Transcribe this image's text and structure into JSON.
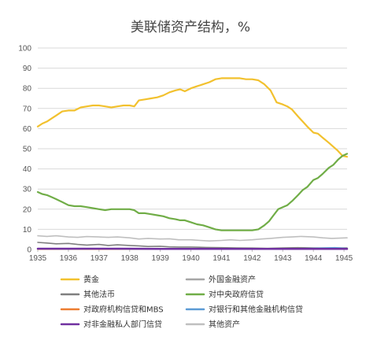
{
  "chart_data": {
    "type": "line",
    "title": "美联储资产结构，%",
    "ylim": [
      0,
      100
    ],
    "yticks": [
      0,
      10,
      20,
      30,
      40,
      50,
      60,
      70,
      80,
      90,
      100
    ],
    "xlim": [
      1935,
      1945.1
    ],
    "xticks": [
      1935,
      1936,
      1937,
      1938,
      1939,
      1940,
      1941,
      1942,
      1943,
      1944,
      1945
    ],
    "grid": true,
    "legend_position": "bottom",
    "series": [
      {
        "name": "黄金",
        "color": "#F2C12E",
        "points": [
          [
            1935.0,
            61
          ],
          [
            1935.15,
            62.5
          ],
          [
            1935.3,
            63.5
          ],
          [
            1935.45,
            65
          ],
          [
            1935.6,
            66.5
          ],
          [
            1935.8,
            68.5
          ],
          [
            1936.0,
            69
          ],
          [
            1936.2,
            69
          ],
          [
            1936.4,
            70.5
          ],
          [
            1936.6,
            71
          ],
          [
            1936.8,
            71.5
          ],
          [
            1937.0,
            71.5
          ],
          [
            1937.2,
            71
          ],
          [
            1937.4,
            70.5
          ],
          [
            1937.6,
            71
          ],
          [
            1937.8,
            71.5
          ],
          [
            1938.0,
            71.5
          ],
          [
            1938.15,
            71
          ],
          [
            1938.3,
            74
          ],
          [
            1938.5,
            74.5
          ],
          [
            1938.7,
            75
          ],
          [
            1938.9,
            75.5
          ],
          [
            1939.1,
            76.5
          ],
          [
            1939.3,
            78
          ],
          [
            1939.5,
            79
          ],
          [
            1939.65,
            79.5
          ],
          [
            1939.8,
            78.5
          ],
          [
            1940.0,
            80
          ],
          [
            1940.2,
            81
          ],
          [
            1940.4,
            82
          ],
          [
            1940.6,
            83
          ],
          [
            1940.8,
            84.5
          ],
          [
            1941.0,
            85
          ],
          [
            1941.2,
            85
          ],
          [
            1941.4,
            85
          ],
          [
            1941.6,
            85
          ],
          [
            1941.8,
            84.5
          ],
          [
            1942.0,
            84.5
          ],
          [
            1942.2,
            84
          ],
          [
            1942.4,
            82
          ],
          [
            1942.6,
            79
          ],
          [
            1942.7,
            76
          ],
          [
            1942.8,
            73
          ],
          [
            1943.0,
            72
          ],
          [
            1943.15,
            71
          ],
          [
            1943.3,
            69.5
          ],
          [
            1943.5,
            66
          ],
          [
            1943.65,
            63.5
          ],
          [
            1943.8,
            61
          ],
          [
            1944.0,
            58
          ],
          [
            1944.15,
            57.5
          ],
          [
            1944.3,
            55.5
          ],
          [
            1944.5,
            53
          ],
          [
            1944.65,
            51
          ],
          [
            1944.8,
            49
          ],
          [
            1944.95,
            46.5
          ],
          [
            1945.1,
            46
          ]
        ]
      },
      {
        "name": "外国金融资产",
        "color": "#A6A6A6",
        "points": [
          [
            1935.0,
            0.2
          ],
          [
            1936.0,
            0.2
          ],
          [
            1937.0,
            0.2
          ],
          [
            1938.0,
            0.3
          ],
          [
            1939.0,
            0.3
          ],
          [
            1940.0,
            0.3
          ],
          [
            1941.0,
            0.3
          ],
          [
            1942.0,
            0.3
          ],
          [
            1943.0,
            0.3
          ],
          [
            1944.0,
            0.3
          ],
          [
            1945.1,
            0.3
          ]
        ]
      },
      {
        "name": "其他法币",
        "color": "#7F7F7F",
        "points": [
          [
            1935.0,
            3.5
          ],
          [
            1935.3,
            3.2
          ],
          [
            1935.6,
            2.8
          ],
          [
            1936.0,
            3
          ],
          [
            1936.3,
            2.5
          ],
          [
            1936.6,
            2.2
          ],
          [
            1937.0,
            2.5
          ],
          [
            1937.3,
            2
          ],
          [
            1937.6,
            2.3
          ],
          [
            1938.0,
            2
          ],
          [
            1938.3,
            1.8
          ],
          [
            1938.6,
            1.5
          ],
          [
            1939.0,
            1.6
          ],
          [
            1939.3,
            1.3
          ],
          [
            1939.6,
            1.2
          ],
          [
            1940.0,
            1.2
          ],
          [
            1940.5,
            1
          ],
          [
            1941.0,
            0.9
          ],
          [
            1941.5,
            0.8
          ],
          [
            1942.0,
            0.7
          ],
          [
            1942.5,
            0.6
          ],
          [
            1943.0,
            0.8
          ],
          [
            1943.5,
            0.9
          ],
          [
            1944.0,
            0.8
          ],
          [
            1944.5,
            0.8
          ],
          [
            1945.1,
            0.8
          ]
        ]
      },
      {
        "name": "对中央政府信贷",
        "color": "#70AD47",
        "points": [
          [
            1935.0,
            28.5
          ],
          [
            1935.15,
            27.5
          ],
          [
            1935.3,
            27
          ],
          [
            1935.45,
            26
          ],
          [
            1935.6,
            25
          ],
          [
            1935.8,
            23.5
          ],
          [
            1936.0,
            22
          ],
          [
            1936.2,
            21.5
          ],
          [
            1936.4,
            21.5
          ],
          [
            1936.6,
            21
          ],
          [
            1936.8,
            20.5
          ],
          [
            1937.0,
            20
          ],
          [
            1937.2,
            19.5
          ],
          [
            1937.4,
            20
          ],
          [
            1937.6,
            20
          ],
          [
            1937.8,
            20
          ],
          [
            1938.0,
            20
          ],
          [
            1938.15,
            19.5
          ],
          [
            1938.3,
            18
          ],
          [
            1938.5,
            18
          ],
          [
            1938.7,
            17.5
          ],
          [
            1938.9,
            17
          ],
          [
            1939.1,
            16.5
          ],
          [
            1939.3,
            15.5
          ],
          [
            1939.5,
            15
          ],
          [
            1939.65,
            14.5
          ],
          [
            1939.8,
            14.5
          ],
          [
            1940.0,
            13.5
          ],
          [
            1940.2,
            12.5
          ],
          [
            1940.4,
            12
          ],
          [
            1940.6,
            11
          ],
          [
            1940.8,
            10
          ],
          [
            1941.0,
            9.5
          ],
          [
            1941.2,
            9.5
          ],
          [
            1941.4,
            9.5
          ],
          [
            1941.6,
            9.5
          ],
          [
            1941.8,
            9.5
          ],
          [
            1942.0,
            9.5
          ],
          [
            1942.2,
            10
          ],
          [
            1942.4,
            12
          ],
          [
            1942.55,
            14
          ],
          [
            1942.7,
            17
          ],
          [
            1942.85,
            20
          ],
          [
            1943.0,
            21
          ],
          [
            1943.15,
            22
          ],
          [
            1943.3,
            24
          ],
          [
            1943.5,
            27
          ],
          [
            1943.65,
            29.5
          ],
          [
            1943.8,
            31
          ],
          [
            1944.0,
            34.5
          ],
          [
            1944.15,
            35.5
          ],
          [
            1944.3,
            37.5
          ],
          [
            1944.5,
            40.5
          ],
          [
            1944.65,
            42
          ],
          [
            1944.8,
            44.5
          ],
          [
            1944.95,
            46.5
          ],
          [
            1945.1,
            47.5
          ]
        ]
      },
      {
        "name": "对政府机构信贷和MBS",
        "color": "#ED7D31",
        "points": [
          [
            1935.0,
            0.1
          ],
          [
            1937.0,
            0.1
          ],
          [
            1939.0,
            0.1
          ],
          [
            1941.0,
            0.1
          ],
          [
            1943.0,
            0.1
          ],
          [
            1945.1,
            0.1
          ]
        ]
      },
      {
        "name": "对银行和其他金融机构信贷",
        "color": "#5B9BD5",
        "points": [
          [
            1935.0,
            0.3
          ],
          [
            1936.0,
            0.2
          ],
          [
            1937.0,
            0.3
          ],
          [
            1938.0,
            0.2
          ],
          [
            1939.0,
            0.2
          ],
          [
            1940.0,
            0.2
          ],
          [
            1941.0,
            0.2
          ],
          [
            1942.0,
            0.2
          ],
          [
            1943.0,
            0.3
          ],
          [
            1944.0,
            0.6
          ],
          [
            1944.7,
            0.9
          ],
          [
            1945.1,
            0.5
          ]
        ]
      },
      {
        "name": "其他资产",
        "color": "#BFBFBF",
        "points": [
          [
            1935.0,
            6.8
          ],
          [
            1935.3,
            6.5
          ],
          [
            1935.6,
            6.8
          ],
          [
            1936.0,
            6.2
          ],
          [
            1936.3,
            6
          ],
          [
            1936.6,
            6.4
          ],
          [
            1937.0,
            6.2
          ],
          [
            1937.3,
            6
          ],
          [
            1937.6,
            6.2
          ],
          [
            1938.0,
            5.8
          ],
          [
            1938.3,
            5.2
          ],
          [
            1938.6,
            5.5
          ],
          [
            1939.0,
            5.2
          ],
          [
            1939.3,
            5.3
          ],
          [
            1939.6,
            4.8
          ],
          [
            1940.0,
            4.8
          ],
          [
            1940.3,
            4.5
          ],
          [
            1940.6,
            4.2
          ],
          [
            1941.0,
            4.5
          ],
          [
            1941.3,
            4.8
          ],
          [
            1941.6,
            4.5
          ],
          [
            1942.0,
            4.8
          ],
          [
            1942.3,
            5.2
          ],
          [
            1942.6,
            5.5
          ],
          [
            1943.0,
            6
          ],
          [
            1943.3,
            6.2
          ],
          [
            1943.6,
            6.5
          ],
          [
            1944.0,
            6.2
          ],
          [
            1944.3,
            5.8
          ],
          [
            1944.6,
            5.5
          ],
          [
            1945.1,
            5.8
          ]
        ]
      },
      {
        "name": "对非金融私人部门信贷",
        "color": "#7030A0",
        "points": [
          [
            1935.0,
            0.4
          ],
          [
            1936.0,
            0.4
          ],
          [
            1937.0,
            0.4
          ],
          [
            1938.0,
            0.4
          ],
          [
            1939.0,
            0.3
          ],
          [
            1940.0,
            0.3
          ],
          [
            1941.0,
            0.3
          ],
          [
            1942.0,
            0.3
          ],
          [
            1943.0,
            0.3
          ],
          [
            1944.0,
            0.3
          ],
          [
            1945.1,
            0.3
          ]
        ]
      }
    ],
    "legend_order": [
      "黄金",
      "外国金融资产",
      "其他法币",
      "对中央政府信贷",
      "对政府机构信贷和MBS",
      "对银行和其他金融机构信贷",
      "对非金融私人部门信贷",
      "其他资产"
    ]
  }
}
